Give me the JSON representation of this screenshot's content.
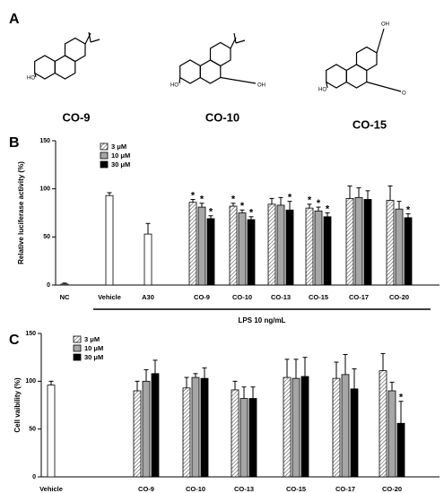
{
  "panels": [
    "A",
    "B",
    "C"
  ],
  "structures": [
    {
      "name": "CO-9",
      "labels": [
        "HO"
      ]
    },
    {
      "name": "CO-10",
      "labels": [
        "HO",
        "OH"
      ]
    },
    {
      "name": "CO-15",
      "labels": [
        "OH",
        "HO",
        "O"
      ]
    }
  ],
  "chart_data": [
    {
      "type": "bar",
      "ylabel": "Relative luciferase activity (%)",
      "xlabel": "LPS 10 ng/mL",
      "categories": [
        "NC",
        "Vehicle",
        "A30",
        "CO-9",
        "CO-10",
        "CO-13",
        "CO-15",
        "CO-17",
        "CO-20"
      ],
      "control_values": [
        1,
        93,
        53,
        null,
        null,
        null,
        null,
        null,
        null
      ],
      "control_errors": [
        1,
        3,
        11,
        null,
        null,
        null,
        null,
        null,
        null
      ],
      "series": [
        {
          "name": "3 μM",
          "color": "#ffffff",
          "hatch": true,
          "values": [
            null,
            null,
            null,
            86,
            82,
            84,
            80,
            90,
            88
          ],
          "errors": [
            null,
            null,
            null,
            3,
            3,
            6,
            4,
            13,
            15
          ],
          "significance": [
            null,
            null,
            null,
            "*",
            "*",
            null,
            "*",
            null,
            null
          ]
        },
        {
          "name": "10 μM",
          "color": "#a6a6a6",
          "hatch": false,
          "values": [
            null,
            null,
            null,
            81,
            75,
            83,
            77,
            91,
            79
          ],
          "errors": [
            null,
            null,
            null,
            4,
            3,
            8,
            4,
            10,
            8
          ],
          "significance": [
            null,
            null,
            null,
            "*",
            "*",
            null,
            "*",
            null,
            null
          ]
        },
        {
          "name": "30 μM",
          "color": "#000000",
          "hatch": false,
          "values": [
            null,
            null,
            null,
            69,
            68,
            78,
            71,
            89,
            70
          ],
          "errors": [
            null,
            null,
            null,
            3,
            3,
            9,
            4,
            9,
            4
          ],
          "significance": [
            null,
            null,
            null,
            "*",
            "*",
            "*",
            "*",
            null,
            "*"
          ]
        }
      ],
      "ylim": [
        0,
        150
      ],
      "yticks": [
        0,
        50,
        100,
        150
      ],
      "legend": "upper left"
    },
    {
      "type": "bar",
      "ylabel": "Cell vaibility (%)",
      "categories": [
        "Vehicle",
        "CO-9",
        "CO-10",
        "CO-13",
        "CO-15",
        "CO-17",
        "CO-20"
      ],
      "control_values": [
        96,
        null,
        null,
        null,
        null,
        null,
        null
      ],
      "control_errors": [
        4,
        null,
        null,
        null,
        null,
        null,
        null
      ],
      "series": [
        {
          "name": "3 μM",
          "color": "#ffffff",
          "hatch": true,
          "values": [
            null,
            90,
            93,
            91,
            104,
            103,
            111
          ],
          "errors": [
            null,
            10,
            11,
            9,
            19,
            17,
            18
          ],
          "significance": [
            null,
            null,
            null,
            null,
            null,
            null,
            null
          ]
        },
        {
          "name": "10 μM",
          "color": "#a6a6a6",
          "hatch": false,
          "values": [
            null,
            100,
            104,
            82,
            103,
            107,
            90
          ],
          "errors": [
            null,
            12,
            4,
            12,
            20,
            21,
            9
          ],
          "significance": [
            null,
            null,
            null,
            null,
            null,
            null,
            null
          ]
        },
        {
          "name": "30 μM",
          "color": "#000000",
          "hatch": false,
          "values": [
            null,
            108,
            103,
            82,
            105,
            92,
            56
          ],
          "errors": [
            null,
            14,
            11,
            12,
            20,
            21,
            23
          ],
          "significance": [
            null,
            null,
            null,
            null,
            null,
            null,
            "*"
          ]
        }
      ],
      "ylim": [
        0,
        150
      ],
      "yticks": [
        0,
        50,
        100,
        150
      ],
      "legend": "upper left"
    }
  ]
}
